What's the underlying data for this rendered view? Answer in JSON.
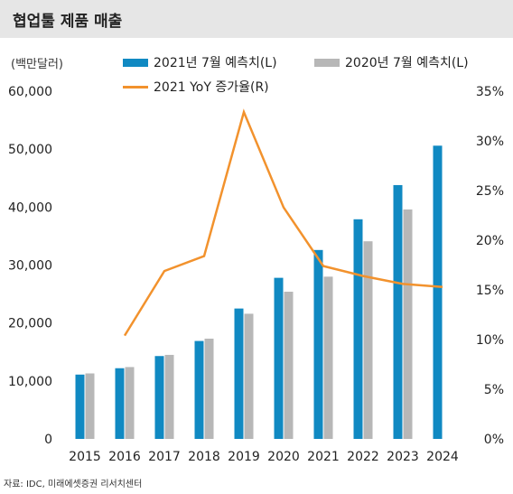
{
  "title": "협업툴 제품 매출",
  "unit": "(백만달러)",
  "source": "자료: IDC, 미래에셋증권 리서치센터",
  "colors": {
    "series_2021": "#1089c2",
    "series_2020": "#b7b7b7",
    "yoy_line": "#f2922d",
    "title_bg": "#e6e6e6"
  },
  "chart_data": {
    "type": "bar",
    "categories": [
      "2015",
      "2016",
      "2017",
      "2018",
      "2019",
      "2020",
      "2021",
      "2022",
      "2023",
      "2024"
    ],
    "series": [
      {
        "name": "2021년 7월 예측치(L)",
        "type": "bar",
        "axis": "left",
        "values": [
          11100,
          12200,
          14300,
          16900,
          22500,
          27800,
          32600,
          37900,
          43800,
          50600
        ]
      },
      {
        "name": "2020년 7월 예측치(L)",
        "type": "bar",
        "axis": "left",
        "values": [
          11300,
          12400,
          14500,
          17300,
          21600,
          25400,
          28000,
          34100,
          39600,
          null
        ]
      },
      {
        "name": "2021 YoY 증가율(R)",
        "type": "line",
        "axis": "right",
        "values": [
          null,
          10.4,
          16.9,
          18.4,
          32.9,
          23.3,
          17.4,
          16.4,
          15.6,
          15.3
        ]
      }
    ],
    "ylim_left": [
      0,
      60000
    ],
    "yticks_left": [
      "60,000",
      "50,000",
      "40,000",
      "30,000",
      "20,000",
      "10,000",
      "0"
    ],
    "ylim_right": [
      0,
      35
    ],
    "yticks_right": [
      "35%",
      "30%",
      "25%",
      "20%",
      "15%",
      "10%",
      "5%",
      "0%"
    ],
    "grid": false,
    "legend_position": "top"
  }
}
